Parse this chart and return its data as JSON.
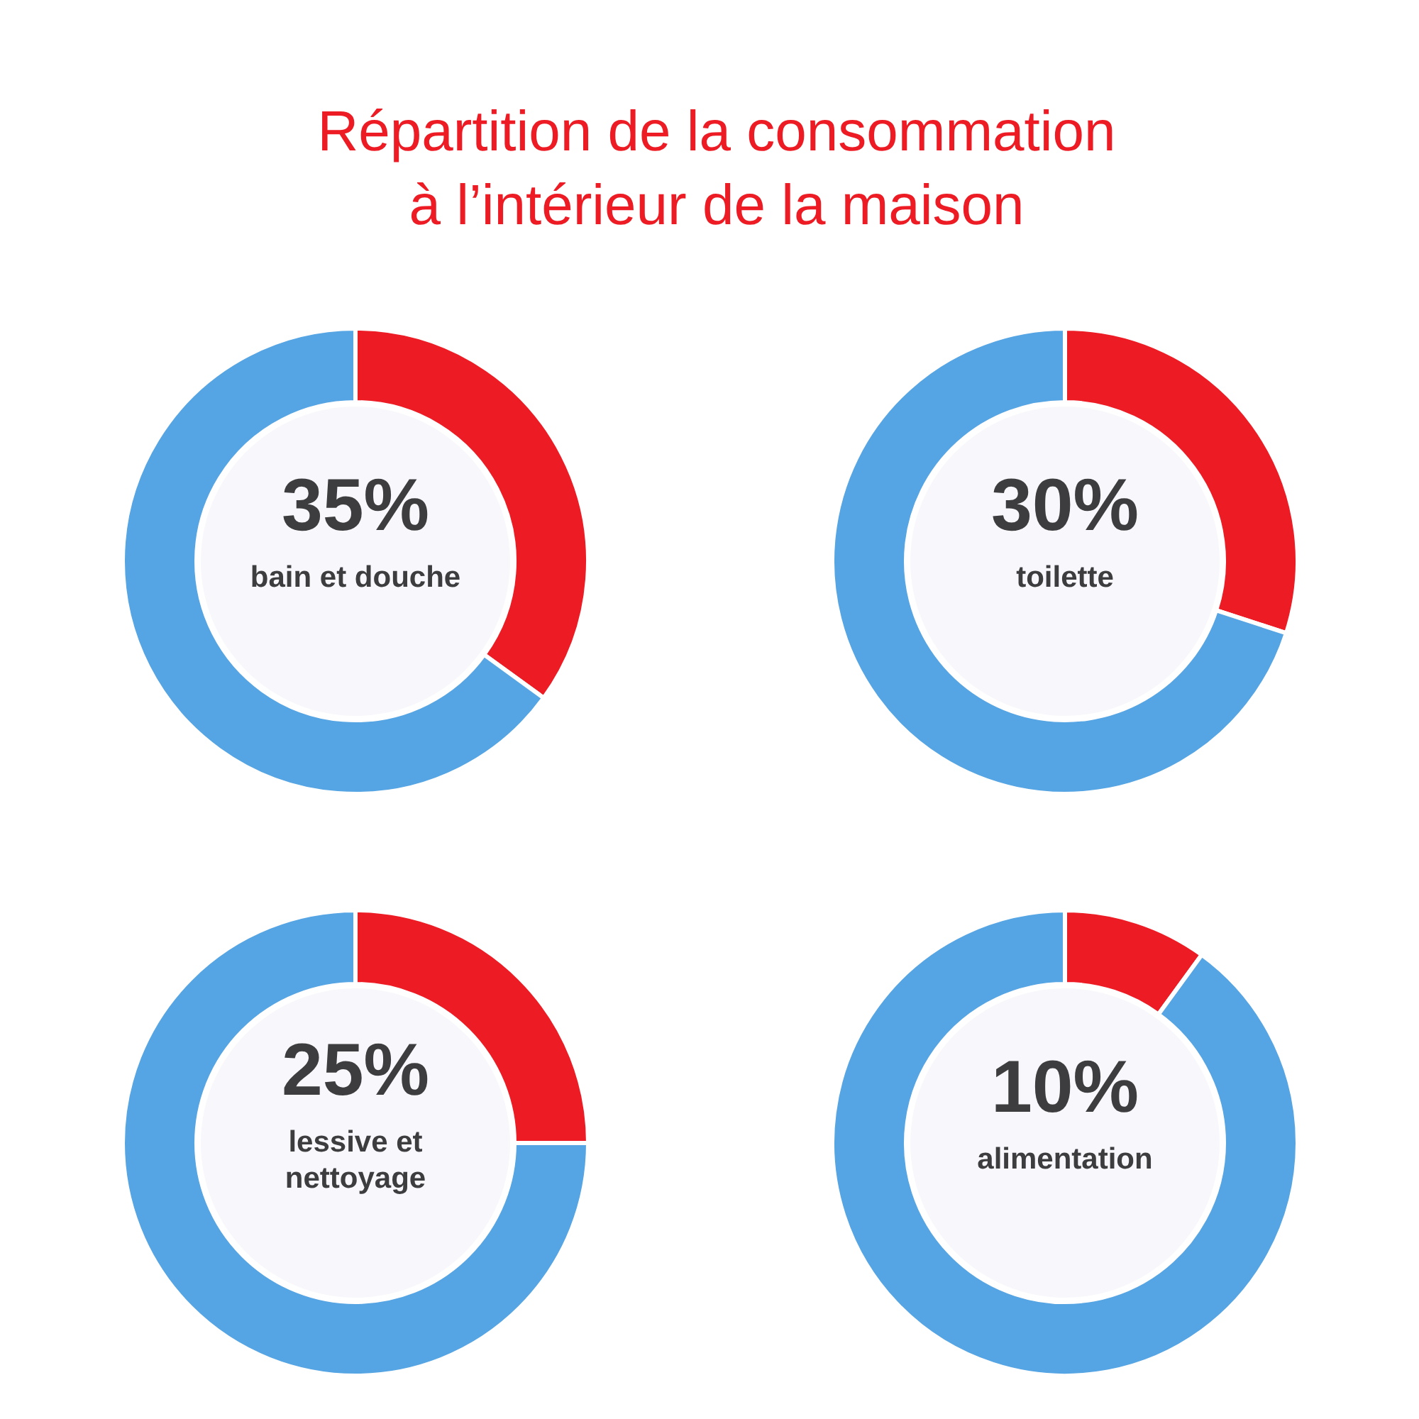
{
  "chart_data": [
    {
      "type": "donut",
      "title": "Répartition de la consommation\nà l’intérieur de la maison",
      "categories": [
        "bain et douche",
        null
      ],
      "values": [
        35,
        65
      ],
      "colors": [
        "#ed1c24",
        "#55a4e3"
      ],
      "value_labels": [
        "35%",
        null
      ]
    },
    {
      "type": "donut",
      "categories": [
        "toilette",
        null
      ],
      "values": [
        30,
        70
      ],
      "colors": [
        "#ed1c24",
        "#55a4e3"
      ],
      "value_labels": [
        "30%",
        null
      ]
    },
    {
      "type": "donut",
      "categories": [
        "lessive et\nnettoyage",
        null
      ],
      "values": [
        25,
        75
      ],
      "colors": [
        "#ed1c24",
        "#55a4e3"
      ],
      "value_labels": [
        "25%",
        null
      ]
    },
    {
      "type": "donut",
      "categories": [
        "alimentation",
        null
      ],
      "values": [
        10,
        90
      ],
      "colors": [
        "#ed1c24",
        "#55a4e3"
      ],
      "value_labels": [
        "10%",
        null
      ]
    }
  ]
}
